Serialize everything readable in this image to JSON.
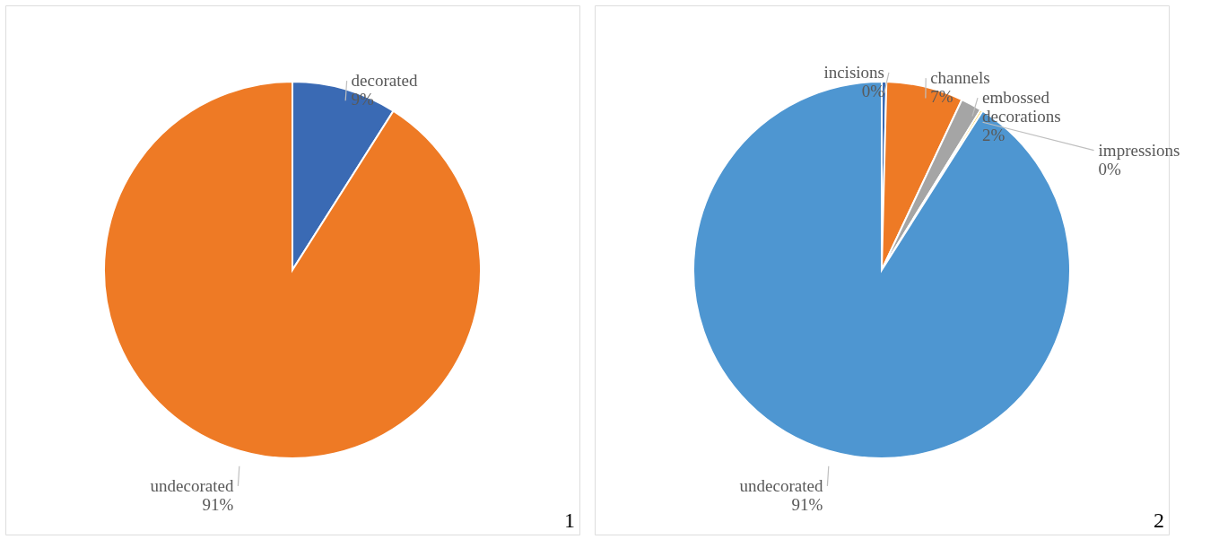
{
  "chart_data": [
    {
      "type": "pie",
      "categories": [
        "decorated",
        "undecorated"
      ],
      "values": [
        9,
        91
      ],
      "colors": [
        "#3a6ab4",
        "#ee7a25"
      ],
      "value_labels": [
        "9%",
        "91%"
      ],
      "annotations": [
        "1"
      ]
    },
    {
      "type": "pie",
      "categories": [
        "incisions",
        "channels",
        "embossed decorations",
        "impressions",
        "undecorated"
      ],
      "values": [
        0.4,
        6.6,
        1.8,
        0.2,
        91
      ],
      "colors": [
        "#3a6ab4",
        "#ee7a25",
        "#a5a5a5",
        "#ffc000",
        "#4e96d1"
      ],
      "value_labels": [
        "0%",
        "7%",
        "2%",
        "0%",
        "91%"
      ],
      "annotations": [
        "2"
      ]
    }
  ]
}
